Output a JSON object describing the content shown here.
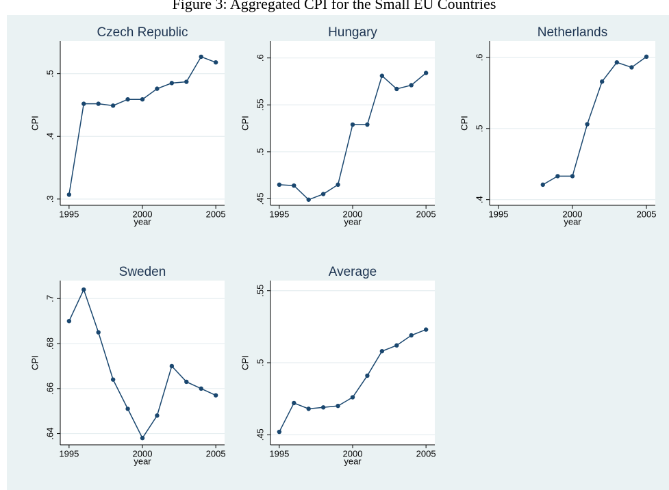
{
  "title": "Figure 3: Aggregated CPI for the Small EU Countries",
  "chart_data": [
    {
      "type": "line",
      "title": "Czech Republic",
      "x_label": "year",
      "y_label": "CPI",
      "color": "#1a476f",
      "x": [
        1995,
        1996,
        1997,
        1998,
        1999,
        2000,
        2001,
        2002,
        2003,
        2004,
        2005
      ],
      "values": [
        0.307,
        0.452,
        0.452,
        0.449,
        0.459,
        0.459,
        0.476,
        0.485,
        0.487,
        0.527,
        0.518
      ],
      "xlim": [
        1994.4,
        2005.6
      ],
      "xticks": [
        1995,
        2000,
        2005
      ],
      "ylim": [
        0.29,
        0.552
      ],
      "yticks": [
        {
          "value": 0.3,
          "label": ".3"
        },
        {
          "value": 0.4,
          "label": ".4"
        },
        {
          "value": 0.5,
          "label": ".5"
        }
      ],
      "grid": true
    },
    {
      "type": "line",
      "title": "Hungary",
      "x_label": "year",
      "y_label": "CPI",
      "color": "#1a476f",
      "x": [
        1995,
        1996,
        1997,
        1998,
        1999,
        2000,
        2001,
        2002,
        2003,
        2004,
        2005
      ],
      "values": [
        0.465,
        0.464,
        0.449,
        0.455,
        0.465,
        0.529,
        0.529,
        0.581,
        0.567,
        0.571,
        0.584
      ],
      "xlim": [
        1994.4,
        2005.6
      ],
      "xticks": [
        1995,
        2000,
        2005
      ],
      "ylim": [
        0.443,
        0.618
      ],
      "yticks": [
        {
          "value": 0.45,
          "label": ".45"
        },
        {
          "value": 0.5,
          "label": ".5"
        },
        {
          "value": 0.55,
          "label": ".55"
        },
        {
          "value": 0.6,
          "label": ".6"
        }
      ],
      "grid": true
    },
    {
      "type": "line",
      "title": "Netherlands",
      "x_label": "year",
      "y_label": "CPI",
      "color": "#1a476f",
      "x": [
        1995,
        1996,
        1997,
        1998,
        1999,
        2000,
        2001,
        2002,
        2003,
        2004,
        2005
      ],
      "values": [
        null,
        null,
        null,
        0.421,
        0.433,
        0.433,
        0.506,
        0.566,
        0.593,
        0.586,
        0.601
      ],
      "xlim": [
        1994.4,
        2005.6
      ],
      "xticks": [
        1995,
        2000,
        2005
      ],
      "ylim": [
        0.392,
        0.623
      ],
      "yticks": [
        {
          "value": 0.4,
          "label": ".4"
        },
        {
          "value": 0.5,
          "label": ".5"
        },
        {
          "value": 0.6,
          "label": ".6"
        }
      ],
      "grid": true
    },
    {
      "type": "line",
      "title": "Sweden",
      "x_label": "year",
      "y_label": "CPI",
      "color": "#1a476f",
      "x": [
        1995,
        1996,
        1997,
        1998,
        1999,
        2000,
        2001,
        2002,
        2003,
        2004,
        2005
      ],
      "values": [
        0.69,
        0.704,
        0.685,
        0.664,
        0.651,
        0.638,
        0.648,
        0.67,
        0.663,
        0.66,
        0.657
      ],
      "xlim": [
        1994.4,
        2005.6
      ],
      "xticks": [
        1995,
        2000,
        2005
      ],
      "ylim": [
        0.635,
        0.708
      ],
      "yticks": [
        {
          "value": 0.64,
          "label": ".64"
        },
        {
          "value": 0.66,
          "label": ".66"
        },
        {
          "value": 0.68,
          "label": ".68"
        },
        {
          "value": 0.7,
          "label": ".7"
        }
      ],
      "grid": true
    },
    {
      "type": "line",
      "title": "Average",
      "x_label": "year",
      "y_label": "CPI",
      "color": "#1a476f",
      "x": [
        1995,
        1996,
        1997,
        1998,
        1999,
        2000,
        2001,
        2002,
        2003,
        2004,
        2005
      ],
      "values": [
        0.452,
        0.472,
        0.468,
        0.469,
        0.47,
        0.476,
        0.491,
        0.508,
        0.512,
        0.519,
        0.523
      ],
      "xlim": [
        1994.4,
        2005.6
      ],
      "xticks": [
        1995,
        2000,
        2005
      ],
      "ylim": [
        0.443,
        0.557
      ],
      "yticks": [
        {
          "value": 0.45,
          "label": ".45"
        },
        {
          "value": 0.5,
          "label": ".5"
        },
        {
          "value": 0.55,
          "label": ".55"
        }
      ],
      "grid": true
    }
  ]
}
